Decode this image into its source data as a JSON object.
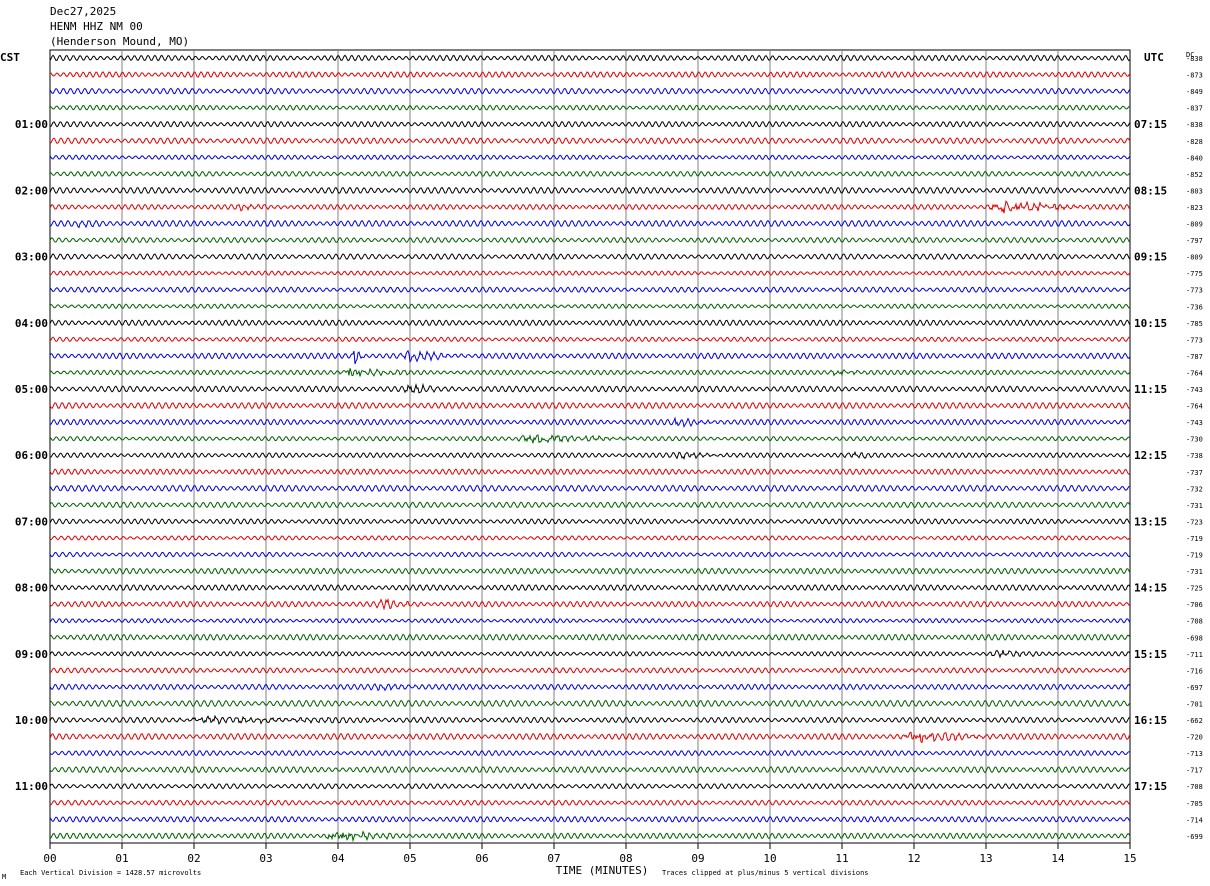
{
  "header": {
    "date": "Dec27,2025",
    "station": "HENM HHZ NM 00",
    "location": "(Henderson Mound, MO)"
  },
  "left_tz": "CST",
  "right_tz": "UTC",
  "dc_label": "DC",
  "footer": {
    "left": "Each Vertical Division = 1428.57 microvolts",
    "xlabel": "TIME (MINUTES)",
    "right": "Traces clipped at plus/minus 5 vertical divisions",
    "mark": "M"
  },
  "colors": {
    "trace_cycle": [
      "#000000",
      "#e00000",
      "#0000e0",
      "#006000"
    ],
    "grid": "#000000",
    "background": "#ffffff"
  },
  "chart_data": {
    "type": "line",
    "x_ticks": [
      "00",
      "01",
      "02",
      "03",
      "04",
      "05",
      "06",
      "07",
      "08",
      "09",
      "10",
      "11",
      "12",
      "13",
      "14",
      "15"
    ],
    "xlim": [
      0,
      15
    ],
    "left_hour_labels": [
      "01:00",
      "02:00",
      "03:00",
      "04:00",
      "05:00",
      "06:00",
      "07:00",
      "08:00",
      "09:00",
      "10:00",
      "11:00"
    ],
    "right_hour_labels": [
      "07:15",
      "08:15",
      "09:15",
      "10:15",
      "11:15",
      "12:15",
      "13:15",
      "14:15",
      "15:15",
      "16:15",
      "17:15"
    ],
    "dc_offsets": [
      "-838",
      "-873",
      "-849",
      "-837",
      "-838",
      "-828",
      "-840",
      "-852",
      "-803",
      "-823",
      "-809",
      "-797",
      "-809",
      "-775",
      "-773",
      "-736",
      "-785",
      "-773",
      "-787",
      "-764",
      "-743",
      "-764",
      "-743",
      "-730",
      "-738",
      "-737",
      "-732",
      "-731",
      "-723",
      "-719",
      "-719",
      "-731",
      "-725",
      "-706",
      "-708",
      "-698",
      "-711",
      "-716",
      "-697",
      "-701",
      "-662",
      "-720",
      "-713",
      "-717",
      "-708",
      "-705",
      "-714",
      "-699"
    ],
    "events": [
      {
        "row": 9,
        "start": 2.5,
        "end": 3.5,
        "amp": 1.6
      },
      {
        "row": 9,
        "start": 13.0,
        "end": 14.6,
        "amp": 4.5
      },
      {
        "row": 10,
        "start": 0.3,
        "end": 0.9,
        "amp": 1.4
      },
      {
        "row": 18,
        "start": 4.2,
        "end": 4.4,
        "amp": 5.5
      },
      {
        "row": 18,
        "start": 4.8,
        "end": 5.9,
        "amp": 2.8
      },
      {
        "row": 19,
        "start": 4.0,
        "end": 5.2,
        "amp": 3.2
      },
      {
        "row": 19,
        "start": 10.8,
        "end": 11.6,
        "amp": 1.6
      },
      {
        "row": 20,
        "start": 4.9,
        "end": 5.6,
        "amp": 2.6
      },
      {
        "row": 22,
        "start": 8.6,
        "end": 9.5,
        "amp": 2.2
      },
      {
        "row": 23,
        "start": 6.4,
        "end": 8.3,
        "amp": 2.8
      },
      {
        "row": 24,
        "start": 8.6,
        "end": 9.7,
        "amp": 1.8
      },
      {
        "row": 24,
        "start": 11.0,
        "end": 11.8,
        "amp": 1.2
      },
      {
        "row": 33,
        "start": 4.5,
        "end": 5.3,
        "amp": 2.6
      },
      {
        "row": 36,
        "start": 13.0,
        "end": 14.0,
        "amp": 1.8
      },
      {
        "row": 38,
        "start": 4.4,
        "end": 5.6,
        "amp": 1.3
      },
      {
        "row": 40,
        "start": 1.5,
        "end": 6.5,
        "amp": 1.4
      },
      {
        "row": 41,
        "start": 11.8,
        "end": 13.2,
        "amp": 3.5
      },
      {
        "row": 47,
        "start": 3.8,
        "end": 4.9,
        "amp": 3.6
      }
    ]
  }
}
